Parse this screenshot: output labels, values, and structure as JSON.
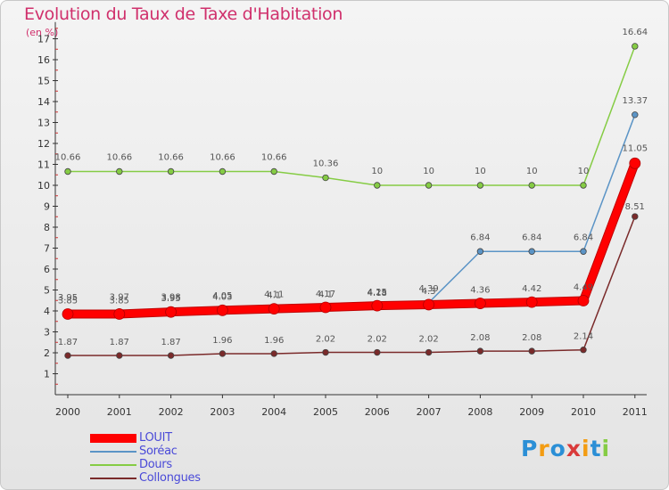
{
  "header": {
    "title": "Evolution du Taux de Taxe d'Habitation",
    "subtitle": "(en %)"
  },
  "chart_data": {
    "type": "line",
    "title": "Evolution du Taux de Taxe d'Habitation",
    "ylabel": "(en %)",
    "xlabel": "",
    "x": [
      "2000",
      "2001",
      "2002",
      "2003",
      "2004",
      "2005",
      "2006",
      "2007",
      "2008",
      "2009",
      "2010",
      "2011"
    ],
    "ylim": [
      0,
      17.8
    ],
    "yticks": [
      1,
      2,
      3,
      4,
      5,
      6,
      7,
      8,
      9,
      10,
      11,
      12,
      13,
      14,
      15,
      16,
      17
    ],
    "grid": false,
    "legend_position": "bottom-left",
    "series": [
      {
        "name": "LOUIT",
        "color": "#ff0000",
        "emphasis": true,
        "values": [
          3.85,
          3.85,
          3.95,
          4.03,
          4.1,
          4.17,
          4.25,
          4.3,
          4.36,
          4.42,
          4.49,
          11.05
        ],
        "labels": [
          "3.85",
          "3.85",
          "3.95",
          "4.03",
          "4.1",
          "4.17",
          "4.25",
          "4.3",
          "4.36",
          "4.42",
          "4.49",
          "11.05"
        ]
      },
      {
        "name": "Soréac",
        "color": "#5b94c6",
        "values": [
          3.95,
          3.97,
          3.98,
          4.05,
          4.11,
          4.1,
          4.18,
          4.39,
          6.84,
          6.84,
          6.84,
          13.37
        ],
        "labels": [
          "3.95",
          "3.97",
          "3.98",
          "4.05",
          "4.11",
          "4.1",
          "4.18",
          "4.39",
          "6.84",
          "6.84",
          "6.84",
          "13.37"
        ]
      },
      {
        "name": "Dours",
        "color": "#85cc44",
        "values": [
          10.66,
          10.66,
          10.66,
          10.66,
          10.66,
          10.36,
          10,
          10,
          10,
          10,
          10,
          16.64
        ],
        "labels": [
          "10.66",
          "10.66",
          "10.66",
          "10.66",
          "10.66",
          "10.36",
          "10",
          "10",
          "10",
          "10",
          "10",
          "16.64"
        ]
      },
      {
        "name": "Collongues",
        "color": "#7a2a2a",
        "values": [
          1.87,
          1.87,
          1.87,
          1.96,
          1.96,
          2.02,
          2.02,
          2.02,
          2.08,
          2.08,
          2.14,
          8.51
        ],
        "labels": [
          "1.87",
          "1.87",
          "1.87",
          "1.96",
          "1.96",
          "2.02",
          "2.02",
          "2.02",
          "2.08",
          "2.08",
          "2.14",
          "8.51"
        ]
      }
    ]
  },
  "legend": {
    "items": [
      "LOUIT",
      "Soréac",
      "Dours",
      "Collongues"
    ]
  },
  "logo": {
    "text": "Proxiti",
    "colors": [
      "#2b8fd6",
      "#f39c12",
      "#2b8fd6",
      "#d93a3a",
      "#f39c12",
      "#2b8fd6",
      "#85cc44"
    ]
  }
}
